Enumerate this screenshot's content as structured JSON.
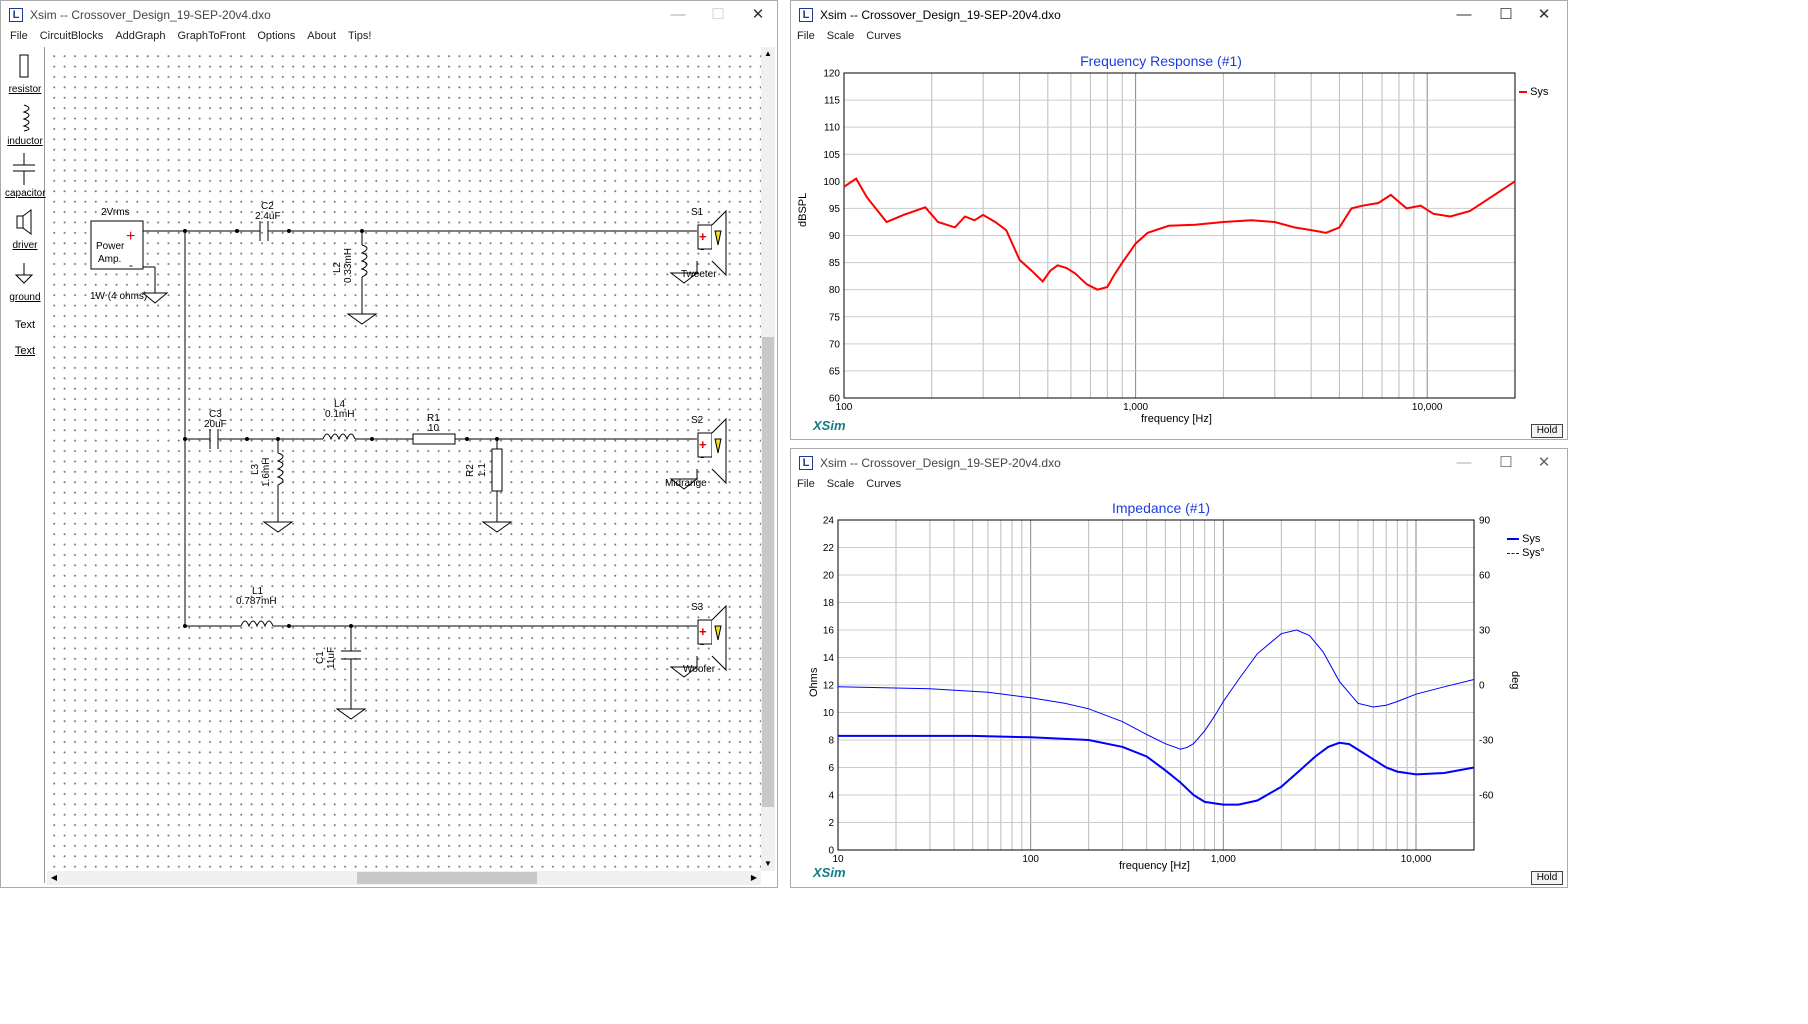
{
  "schematic_window": {
    "title": "Xsim -- Crossover_Design_19-SEP-20v4.dxo",
    "menu": [
      "File",
      "CircuitBlocks",
      "AddGraph",
      "GraphToFront",
      "Options",
      "About",
      "Tips!"
    ],
    "palette": [
      "resistor",
      "inductor",
      "capacitor",
      "driver",
      "ground",
      "Text",
      "Text"
    ],
    "components": {
      "amp_label": "2Vrms",
      "amp_name1": "Power",
      "amp_name2": "Amp.",
      "amp_power": "1W (4 ohms)",
      "c2_name": "C2",
      "c2_value": "2.4uF",
      "l2_name": "L2",
      "l2_value": "0.33mH",
      "s1_name": "S1",
      "s1_label": "Tweeter",
      "c3_name": "C3",
      "c3_value": "20uF",
      "l4_name": "L4",
      "l4_value": "0.1mH",
      "r1_name": "R1",
      "r1_value": "10",
      "l3_name": "L3",
      "l3_value": "1.6mH",
      "r2_name": "R2",
      "r2_value": "1.1",
      "s2_name": "S2",
      "s2_label": "Midrange",
      "l1_name": "L1",
      "l1_value": "0.787mH",
      "c1_name": "C1",
      "c1_value": "11uF",
      "s3_name": "S3",
      "s3_label": "Woofer"
    }
  },
  "freq_window": {
    "title": "Xsim -- Crossover_Design_19-SEP-20v4.dxo",
    "menu": [
      "File",
      "Scale",
      "Curves"
    ],
    "plot_title": "Frequency Response (#1)",
    "ylabel": "dBSPL",
    "xlabel": "frequency [Hz]",
    "legend": "Sys",
    "logo": "XSim",
    "hold": "Hold"
  },
  "imp_window": {
    "title": "Xsim -- Crossover_Design_19-SEP-20v4.dxo",
    "menu": [
      "File",
      "Scale",
      "Curves"
    ],
    "plot_title": "Impedance (#1)",
    "ylabel": "Ohms",
    "y2label": "deg",
    "xlabel": "frequency [Hz]",
    "legend1": "Sys",
    "legend2": "Sys°",
    "logo": "XSim",
    "hold": "Hold"
  },
  "chart_data": [
    {
      "type": "line",
      "title": "Frequency Response (#1)",
      "xlabel": "frequency [Hz]",
      "ylabel": "dBSPL",
      "xscale": "log",
      "xlim": [
        100,
        20000
      ],
      "ylim": [
        60,
        120
      ],
      "yticks": [
        60,
        65,
        70,
        75,
        80,
        85,
        90,
        95,
        100,
        105,
        110,
        115,
        120
      ],
      "xticklabels": [
        "100",
        "1,000",
        "10,000"
      ],
      "grid": true,
      "legend_position": "right",
      "series": [
        {
          "name": "Sys",
          "color": "#ff0000",
          "x": [
            100,
            110,
            120,
            140,
            160,
            190,
            210,
            240,
            260,
            280,
            300,
            330,
            360,
            400,
            440,
            480,
            510,
            540,
            580,
            620,
            680,
            740,
            800,
            840,
            900,
            1000,
            1100,
            1300,
            1600,
            2000,
            2500,
            3000,
            3500,
            4000,
            4500,
            5000,
            5500,
            6000,
            6800,
            7500,
            8500,
            9500,
            10500,
            12000,
            14000,
            17000,
            20000
          ],
          "y": [
            99,
            100.5,
            97,
            92.5,
            93.8,
            95.2,
            92.5,
            91.5,
            93.5,
            92.8,
            93.8,
            92.5,
            91,
            85.5,
            83.5,
            81.5,
            83.5,
            84.5,
            84,
            83,
            81,
            80,
            80.5,
            82.5,
            85,
            88.5,
            90.5,
            91.8,
            92,
            92.5,
            92.8,
            92.5,
            91.5,
            91,
            90.5,
            91.5,
            95,
            95.5,
            96,
            97.5,
            95,
            95.5,
            94,
            93.5,
            94.5,
            97.5,
            100
          ]
        }
      ]
    },
    {
      "type": "line",
      "title": "Impedance (#1)",
      "xlabel": "frequency [Hz]",
      "ylabel": "Ohms",
      "y2label": "deg",
      "xscale": "log",
      "xlim": [
        10,
        20000
      ],
      "ylim": [
        0,
        24
      ],
      "y2lim": [
        -90,
        90
      ],
      "yticks": [
        0,
        2,
        4,
        6,
        8,
        10,
        12,
        14,
        16,
        18,
        20,
        22,
        24
      ],
      "y2ticks": [
        -60,
        -30,
        0,
        30,
        60,
        90
      ],
      "xticklabels": [
        "10",
        "100",
        "1,000",
        "10,000"
      ],
      "grid": true,
      "legend_position": "top-right",
      "series": [
        {
          "name": "Sys",
          "axis": "left",
          "color": "#0000ff",
          "x": [
            10,
            20,
            50,
            100,
            200,
            300,
            400,
            500,
            600,
            700,
            800,
            1000,
            1200,
            1500,
            2000,
            2500,
            3000,
            3500,
            4000,
            4500,
            5000,
            6000,
            7000,
            8000,
            10000,
            14000,
            20000
          ],
          "y": [
            8.3,
            8.3,
            8.3,
            8.2,
            8.0,
            7.5,
            6.8,
            5.8,
            4.9,
            4.0,
            3.5,
            3.3,
            3.3,
            3.6,
            4.6,
            5.8,
            6.8,
            7.5,
            7.8,
            7.7,
            7.3,
            6.6,
            6.0,
            5.7,
            5.5,
            5.6,
            6.0
          ]
        },
        {
          "name": "Sys°",
          "axis": "right",
          "color": "#0000ff",
          "x": [
            10,
            30,
            60,
            100,
            150,
            200,
            300,
            400,
            500,
            600,
            650,
            700,
            800,
            900,
            1000,
            1200,
            1500,
            2000,
            2400,
            2800,
            3300,
            4000,
            5000,
            6000,
            7000,
            8000,
            10000,
            14000,
            20000
          ],
          "y": [
            -1,
            -2,
            -4,
            -7,
            -10,
            -13,
            -20,
            -27,
            -32,
            -35,
            -34,
            -32,
            -25,
            -17,
            -9,
            3,
            17,
            28,
            30,
            27,
            18,
            2,
            -10,
            -12,
            -11,
            -9,
            -5,
            -1,
            3
          ]
        }
      ]
    }
  ]
}
